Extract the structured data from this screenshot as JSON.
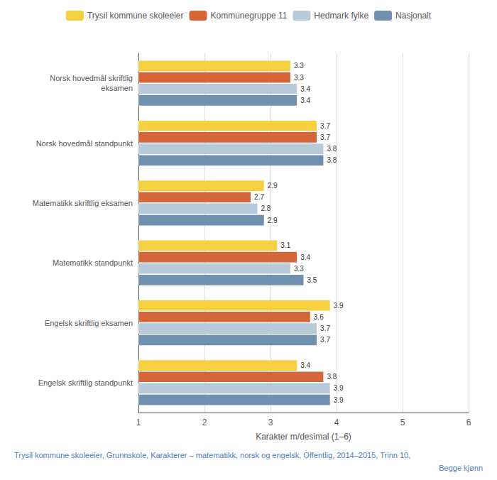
{
  "chart_data": {
    "type": "bar",
    "orientation": "horizontal",
    "categories": [
      "Norsk hovedmål skriftlig\neksamen",
      "Norsk hovedmål standpunkt",
      "Matematikk skriftlig eksamen",
      "Matematikk standpunkt",
      "Engelsk skriftlig eksamen",
      "Engelsk skriftlig standpunkt"
    ],
    "series": [
      {
        "name": "Trysil kommune skoleeier",
        "color": "#F5D040",
        "values": [
          3.3,
          3.7,
          2.9,
          3.1,
          3.9,
          3.4
        ]
      },
      {
        "name": "Kommunegruppe 11",
        "color": "#D4663A",
        "values": [
          3.3,
          3.7,
          2.7,
          3.4,
          3.6,
          3.8
        ]
      },
      {
        "name": "Hedmark fylke",
        "color": "#B8C9D9",
        "values": [
          3.4,
          3.8,
          2.8,
          3.3,
          3.7,
          3.9
        ]
      },
      {
        "name": "Nasjonalt",
        "color": "#7090B0",
        "values": [
          3.4,
          3.8,
          2.9,
          3.5,
          3.7,
          3.9
        ]
      }
    ],
    "x_label": "Karakter m/desimal (1–6)",
    "xlim": [
      1,
      6
    ],
    "xticks": [
      1,
      2,
      3,
      4,
      5,
      6
    ],
    "grid": true,
    "legend": "top",
    "data_labels": true,
    "annotations": [
      "Trysil kommune skoleeier, Grunnskole, Karakterer – matematikk, norsk og engelsk, Offentlig, 2014–2015, Trinn 10,",
      "Begge kjønn"
    ]
  }
}
